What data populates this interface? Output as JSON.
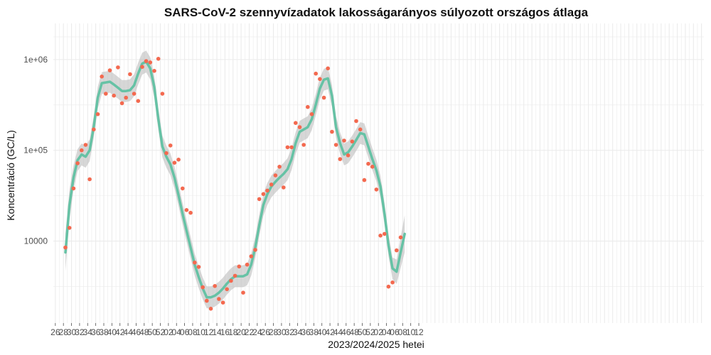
{
  "chart_data": {
    "type": "scatter",
    "title": "SARS-CoV-2 szennyvízadatok lakosságarányos súlyozott országos átlaga",
    "xlabel": "2023/2024/2025 hetei",
    "ylabel": "Koncentráció (GC/L)",
    "y_scale": "log10",
    "ylim": [
      1250,
      2500000
    ],
    "grid": true,
    "legend": "none",
    "colors": {
      "points": "#f4694f",
      "smooth": "#66c2a5",
      "band": "#bdbdbd",
      "grid": "#ebebeb"
    },
    "y_ticks": [
      {
        "value": 10000,
        "label": "10000"
      },
      {
        "value": 100000,
        "label": "1e+05"
      },
      {
        "value": 1000000,
        "label": "1e+06"
      }
    ],
    "x_ticks": [
      "26",
      "28",
      "30",
      "32",
      "34",
      "36",
      "38",
      "40",
      "42",
      "44",
      "46",
      "48",
      "50",
      "52",
      "02",
      "04",
      "06",
      "08",
      "10",
      "12",
      "14",
      "16",
      "18",
      "20",
      "22",
      "24",
      "26",
      "28",
      "30",
      "32",
      "34",
      "36",
      "38",
      "40",
      "42",
      "44",
      "46",
      "48",
      "50",
      "52",
      "02",
      "04",
      "06",
      "08",
      "10",
      "12"
    ],
    "points": {
      "values": [
        8500,
        14000,
        38000,
        72000,
        100000,
        115000,
        48000,
        170000,
        250000,
        650000,
        420000,
        760000,
        400000,
        820000,
        330000,
        380000,
        690000,
        420000,
        350000,
        830000,
        960000,
        930000,
        750000,
        1020000,
        420000,
        93000,
        113000,
        73000,
        79000,
        38000,
        22000,
        20500,
        5800,
        5200,
        3100,
        2200,
        1800,
        3200,
        2300,
        2100,
        2950,
        3650,
        4150,
        5250,
        2700,
        5500,
        6800,
        8000,
        29000,
        33000,
        36000,
        42000,
        53000,
        66000,
        39000,
        108000,
        108000,
        200000,
        180000,
        115000,
        300000,
        250000,
        700000,
        610000,
        380000,
        800000,
        160000,
        115000,
        80000,
        128000,
        88000,
        125000,
        210000,
        170000,
        47000,
        71000,
        66000,
        37000,
        11500,
        12000,
        3150,
        3500,
        7900,
        11000
      ],
      "start_week": 28.5,
      "step_weeks": 1
    },
    "smooth": {
      "values": [
        7500,
        25000,
        50000,
        78000,
        90000,
        85000,
        100000,
        180000,
        380000,
        550000,
        560000,
        570000,
        530000,
        490000,
        450000,
        450000,
        460000,
        520000,
        700000,
        900000,
        950000,
        800000,
        500000,
        220000,
        110000,
        85000,
        70000,
        50000,
        32000,
        20000,
        13000,
        8500,
        5500,
        4000,
        3000,
        2400,
        2400,
        2500,
        2700,
        3000,
        3400,
        3800,
        4100,
        4100,
        4100,
        4300,
        5500,
        8500,
        15000,
        25000,
        33000,
        40000,
        45000,
        50000,
        55000,
        62000,
        80000,
        120000,
        160000,
        170000,
        180000,
        220000,
        320000,
        480000,
        600000,
        620000,
        400000,
        180000,
        120000,
        90000,
        95000,
        110000,
        130000,
        155000,
        150000,
        110000,
        80000,
        60000,
        40000,
        20000,
        9000,
        5000,
        4600,
        7500,
        12000
      ],
      "start_week": 28.5,
      "step_weeks": 1
    }
  }
}
